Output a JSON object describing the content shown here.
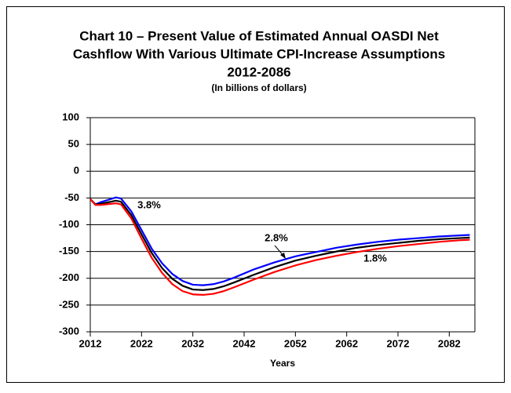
{
  "chart_data": {
    "type": "line",
    "title": [
      "Chart 10 – Present Value of Estimated Annual OASDI Net",
      "Cashflow With Various Ultimate CPI-Increase Assumptions",
      "2012-2086"
    ],
    "subtitle": "(In billions of dollars)",
    "x_label": "Years",
    "x": [
      2012,
      2013,
      2014,
      2016,
      2017,
      2018,
      2020,
      2022,
      2024,
      2026,
      2028,
      2030,
      2032,
      2034,
      2036,
      2038,
      2040,
      2044,
      2048,
      2052,
      2056,
      2060,
      2064,
      2068,
      2072,
      2076,
      2080,
      2084,
      2086
    ],
    "series": [
      {
        "name": "3.8%",
        "color": "#0000ff",
        "values": [
          -52,
          -62,
          -58,
          -52,
          -49,
          -51,
          -75,
          -110,
          -145,
          -172,
          -192,
          -205,
          -212,
          -213,
          -211,
          -206,
          -199,
          -183,
          -170,
          -159,
          -151,
          -143,
          -137,
          -132,
          -128,
          -125,
          -122,
          -120,
          -119
        ]
      },
      {
        "name": "2.8%",
        "color": "#000000",
        "values": [
          -52,
          -62,
          -61,
          -57,
          -55,
          -57,
          -82,
          -118,
          -153,
          -181,
          -201,
          -214,
          -221,
          -222,
          -220,
          -215,
          -208,
          -193,
          -179,
          -167,
          -158,
          -150,
          -143,
          -138,
          -134,
          -130,
          -127,
          -125,
          -124
        ]
      },
      {
        "name": "1.8%",
        "color": "#ff0000",
        "values": [
          -52,
          -63,
          -63,
          -61,
          -60,
          -62,
          -88,
          -126,
          -162,
          -190,
          -211,
          -224,
          -230,
          -231,
          -229,
          -224,
          -217,
          -202,
          -188,
          -176,
          -166,
          -158,
          -151,
          -145,
          -140,
          -136,
          -132,
          -129,
          -128
        ]
      }
    ],
    "xlim": [
      2012,
      2087
    ],
    "xticks": [
      2012,
      2022,
      2032,
      2042,
      2052,
      2062,
      2072,
      2082
    ],
    "ylim": [
      -300,
      100
    ],
    "yticks": [
      -300,
      -250,
      -200,
      -150,
      -100,
      -50,
      0,
      50,
      100
    ],
    "grid": true
  }
}
